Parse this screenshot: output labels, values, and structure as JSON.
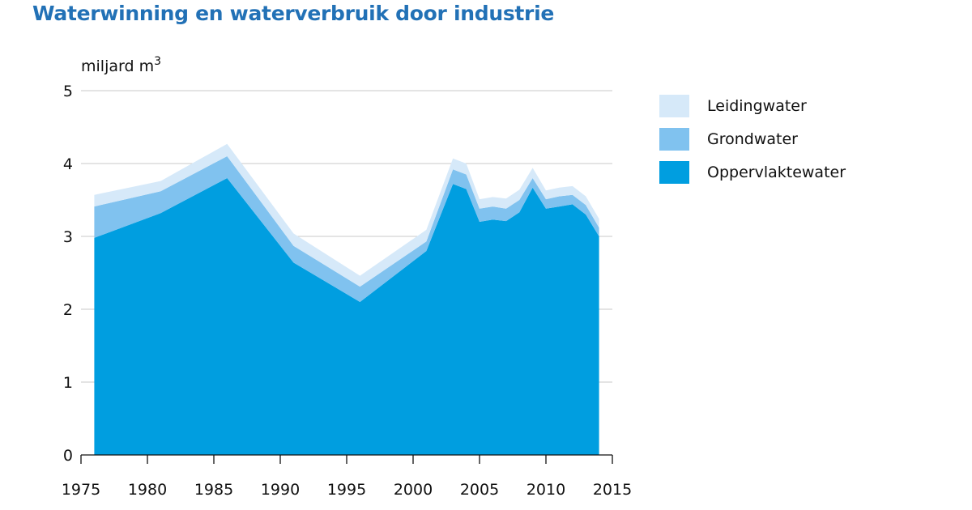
{
  "title": "Waterwinning en waterverbruik door industrie",
  "colors": {
    "title": "#2271b6",
    "axis": "#111111",
    "grid": "#c8c8c8",
    "leidingwater": "#d6e9f9",
    "grondwater": "#80c2ef",
    "oppervlaktewater": "#009ee0"
  },
  "chart_data": {
    "type": "area",
    "stacked": true,
    "ylabel": "miljard m³",
    "ylabel_text": "miljard m",
    "ylabel_sup": "3",
    "xlim": [
      1975,
      2015
    ],
    "ylim": [
      0,
      5
    ],
    "x_ticks": [
      "1975",
      "1980",
      "1985",
      "1990",
      "1995",
      "2000",
      "2005",
      "2010",
      "2015"
    ],
    "y_ticks": [
      "0",
      "1",
      "2",
      "3",
      "4",
      "5"
    ],
    "grid": true,
    "legend_position": "right",
    "legend_order": [
      "Leidingwater",
      "Grondwater",
      "Oppervlaktewater"
    ],
    "x": [
      1976,
      1981,
      1986,
      1991,
      1996,
      2001,
      2003,
      2004,
      2005,
      2006,
      2007,
      2008,
      2009,
      2010,
      2011,
      2012,
      2013,
      2014
    ],
    "series": [
      {
        "name": "Oppervlaktewater",
        "color_key": "oppervlaktewater",
        "values": [
          2.98,
          3.32,
          3.8,
          2.64,
          2.1,
          2.8,
          3.72,
          3.65,
          3.2,
          3.23,
          3.21,
          3.33,
          3.67,
          3.38,
          3.41,
          3.44,
          3.3,
          3.0
        ]
      },
      {
        "name": "Grondwater",
        "color_key": "grondwater",
        "values": [
          0.43,
          0.3,
          0.3,
          0.23,
          0.21,
          0.13,
          0.2,
          0.2,
          0.18,
          0.18,
          0.17,
          0.17,
          0.13,
          0.13,
          0.14,
          0.13,
          0.13,
          0.12
        ]
      },
      {
        "name": "Leidingwater",
        "color_key": "leidingwater",
        "values": [
          0.16,
          0.14,
          0.17,
          0.17,
          0.15,
          0.16,
          0.15,
          0.15,
          0.13,
          0.13,
          0.14,
          0.14,
          0.14,
          0.12,
          0.12,
          0.12,
          0.12,
          0.12
        ]
      }
    ]
  }
}
